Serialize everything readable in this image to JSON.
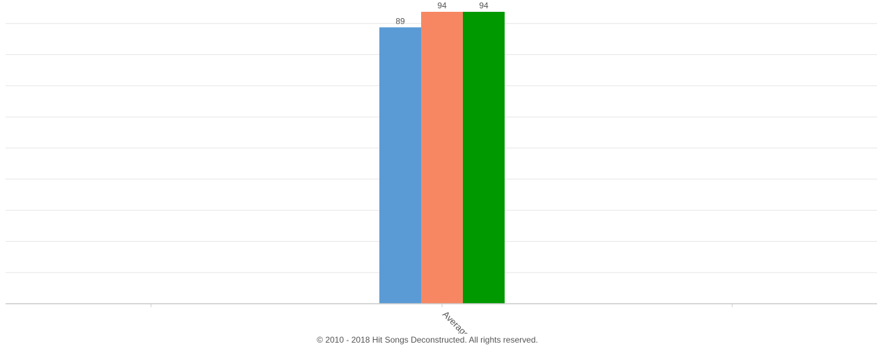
{
  "chart_data": {
    "type": "bar",
    "categories": [
      "Average"
    ],
    "series": [
      {
        "values": [
          89
        ],
        "color": "#5b9bd5"
      },
      {
        "values": [
          94
        ],
        "color": "#f78762"
      },
      {
        "values": [
          94
        ],
        "color": "#009900"
      }
    ],
    "ylim": [
      0,
      94
    ],
    "grid": true,
    "data_labels": true
  },
  "footer": {
    "copyright": "© 2010 - 2018 Hit Songs Deconstructed. All rights reserved."
  }
}
